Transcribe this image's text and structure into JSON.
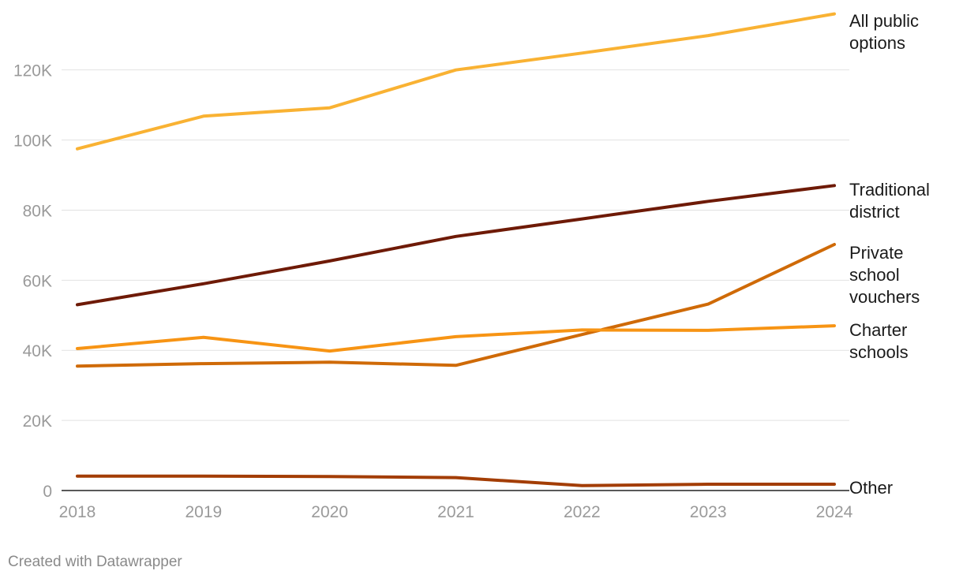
{
  "chart_data": {
    "type": "line",
    "title": "",
    "xlabel": "",
    "ylabel": "",
    "x": [
      2018,
      2019,
      2020,
      2021,
      2022,
      2023,
      2024
    ],
    "ylim": [
      0,
      135000
    ],
    "y_ticks": [
      0,
      20000,
      40000,
      60000,
      80000,
      100000,
      120000
    ],
    "y_tick_labels": [
      "0",
      "20K",
      "40K",
      "60K",
      "80K",
      "100K",
      "120K"
    ],
    "x_tick_labels": [
      "2018",
      "2019",
      "2020",
      "2021",
      "2022",
      "2023",
      "2024"
    ],
    "grid": true,
    "legend": "direct labels at line ends",
    "series": [
      {
        "name": "All public options",
        "color": "#f9b233",
        "values": [
          97500,
          106800,
          109200,
          120000,
          124800,
          129800,
          136000
        ]
      },
      {
        "name": "Traditional district",
        "color": "#6e1a06",
        "values": [
          53000,
          59000,
          65500,
          72500,
          77500,
          82500,
          87000
        ]
      },
      {
        "name": "Private school vouchers",
        "color": "#cf6a07",
        "values": [
          35500,
          36200,
          36600,
          35700,
          44500,
          53200,
          70200
        ]
      },
      {
        "name": "Charter schools",
        "color": "#f79414",
        "values": [
          40500,
          43700,
          39800,
          43900,
          45800,
          45700,
          47000
        ]
      },
      {
        "name": "Other",
        "color": "#a33d04",
        "values": [
          4100,
          4100,
          4000,
          3700,
          1400,
          1800,
          1800
        ]
      }
    ]
  },
  "credit": "Created with Datawrapper"
}
